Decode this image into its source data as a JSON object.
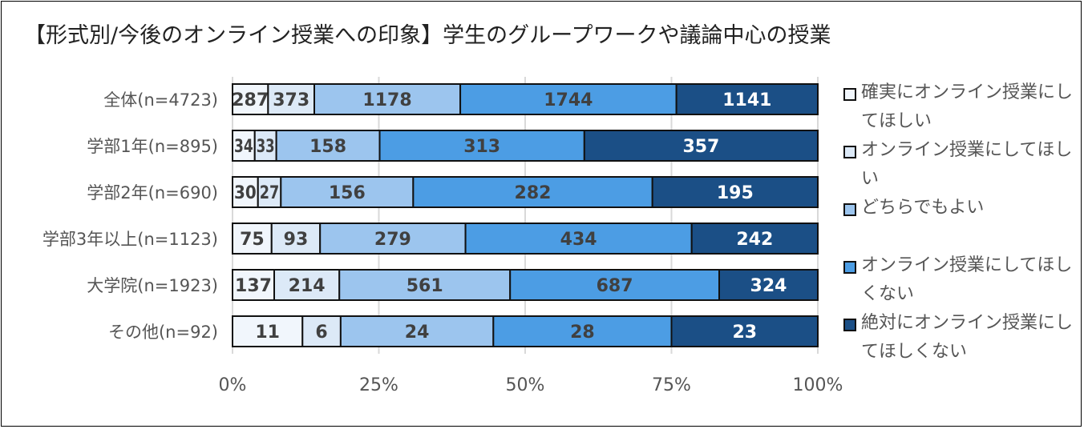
{
  "chart_data": {
    "type": "bar",
    "orientation": "horizontal",
    "stacked": "percent",
    "title": "【形式別/今後のオンライン授業への印象】学生のグループワークや議論中心の授業",
    "categories": [
      "全体(n=4723)",
      "学部1年(n=895)",
      "学部2年(n=690)",
      "学部3年以上(n=1123)",
      "大学院(n=1923)",
      "その他(n=92)"
    ],
    "series": [
      {
        "name": "確実にオンライン授業にしてほしい",
        "color": "#f1f6fc",
        "label_color": "#404040",
        "values": [
          287,
          34,
          30,
          75,
          137,
          11
        ]
      },
      {
        "name": "オンライン授業にしてほしい",
        "color": "#dce9f7",
        "label_color": "#404040",
        "values": [
          373,
          33,
          27,
          93,
          214,
          6
        ]
      },
      {
        "name": "どちらでもよい",
        "color": "#9cc5ee",
        "label_color": "#404040",
        "values": [
          1178,
          158,
          156,
          279,
          561,
          24
        ]
      },
      {
        "name": "オンライン授業にしてほしくない",
        "color": "#4c9de4",
        "label_color": "#404040",
        "values": [
          1744,
          313,
          282,
          434,
          687,
          28
        ]
      },
      {
        "name": "絶対にオンライン授業にしてほしくない",
        "color": "#1b4f86",
        "label_color": "#ffffff",
        "values": [
          1141,
          357,
          195,
          242,
          324,
          23
        ]
      }
    ],
    "xticks": [
      "0%",
      "25%",
      "50%",
      "75%",
      "100%"
    ],
    "xlim": [
      0,
      100
    ],
    "grid": "vertical",
    "legend": "right"
  }
}
